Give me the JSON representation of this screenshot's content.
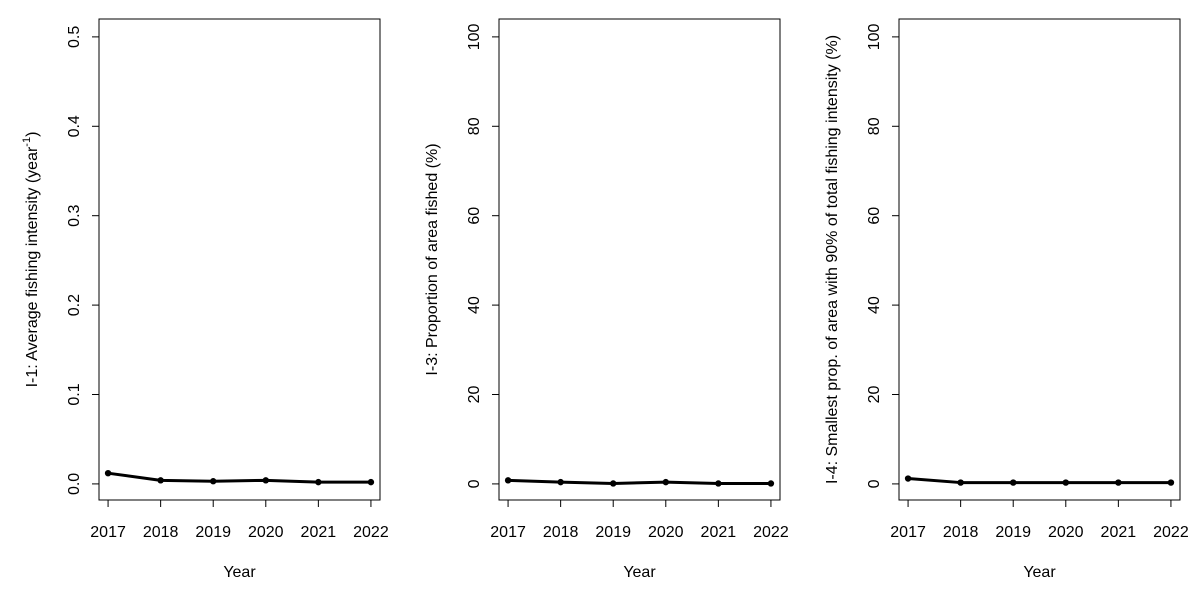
{
  "chart_data": [
    {
      "type": "line",
      "xlabel": "Year",
      "ylabel": "I-1: Average fishing intensity (year",
      "ylabel_sup": "-1",
      "ylabel_suffix": ")",
      "x": [
        2017,
        2018,
        2019,
        2020,
        2021,
        2022
      ],
      "values": [
        0.012,
        0.004,
        0.003,
        0.004,
        0.002,
        0.002
      ],
      "xticks": [
        "2017",
        "2018",
        "2019",
        "2020",
        "2021",
        "2022"
      ],
      "yticks": [
        "0.0",
        "0.1",
        "0.2",
        "0.3",
        "0.4",
        "0.5"
      ],
      "ytick_values": [
        0,
        0.1,
        0.2,
        0.3,
        0.4,
        0.5
      ],
      "ylim": [
        -0.018,
        0.52
      ],
      "grid": false,
      "line_color": "#000000"
    },
    {
      "type": "line",
      "xlabel": "Year",
      "ylabel": "I-3: Proportion of area fished (%)",
      "x": [
        2017,
        2018,
        2019,
        2020,
        2021,
        2022
      ],
      "values": [
        0.8,
        0.4,
        0.1,
        0.4,
        0.1,
        0.1
      ],
      "xticks": [
        "2017",
        "2018",
        "2019",
        "2020",
        "2021",
        "2022"
      ],
      "yticks": [
        "0",
        "20",
        "40",
        "60",
        "80",
        "100"
      ],
      "ytick_values": [
        0,
        20,
        40,
        60,
        80,
        100
      ],
      "ylim": [
        -3.6,
        104
      ],
      "grid": false,
      "line_color": "#000000"
    },
    {
      "type": "line",
      "xlabel": "Year",
      "ylabel": "I-4: Smallest  prop. of area with 90% of total fishing intensity (%)",
      "x": [
        2017,
        2018,
        2019,
        2020,
        2021,
        2022
      ],
      "values": [
        1.2,
        0.3,
        0.3,
        0.3,
        0.3,
        0.3
      ],
      "xticks": [
        "2017",
        "2018",
        "2019",
        "2020",
        "2021",
        "2022"
      ],
      "yticks": [
        "0",
        "20",
        "40",
        "60",
        "80",
        "100"
      ],
      "ytick_values": [
        0,
        20,
        40,
        60,
        80,
        100
      ],
      "ylim": [
        -3.6,
        104
      ],
      "grid": false,
      "line_color": "#000000"
    }
  ]
}
